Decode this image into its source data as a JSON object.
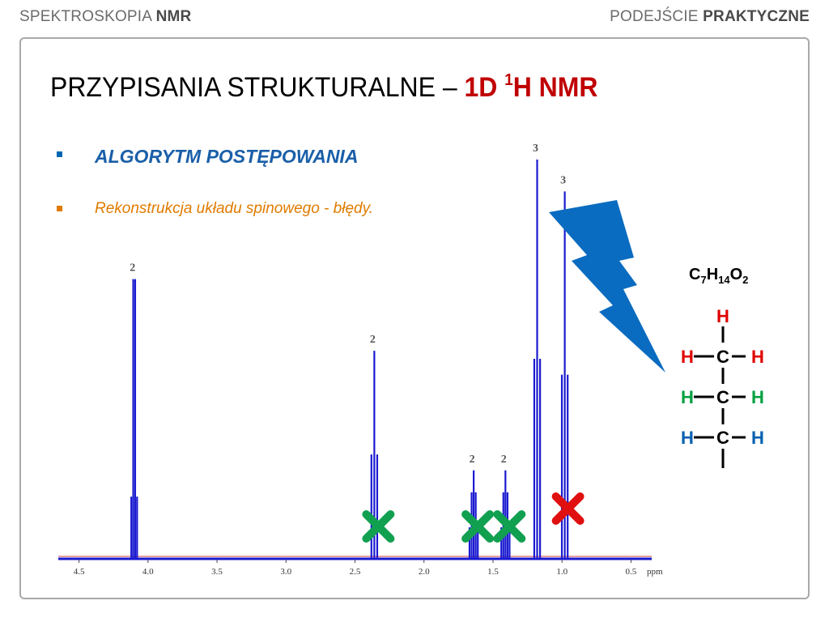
{
  "header": {
    "left_regular": "SPEKTROSKOPIA ",
    "left_bold": "NMR",
    "right_regular": "PODEJŚCIE ",
    "right_bold": "PRAKTYCZNE"
  },
  "title": {
    "prefix": "PRZYPISANIA STRUKTURALNE – ",
    "highlight_a": "1D ",
    "sup": "1",
    "highlight_b": "H NMR"
  },
  "bullets": [
    {
      "text": "ALGORYTM POSTĘPOWANIA",
      "color": "#1a5fa8"
    },
    {
      "text": "Rekonstrukcja układu spinowego - błędy.",
      "color": "#e07b00"
    }
  ],
  "formula": {
    "c": "C",
    "c_n": "7",
    "h": "H",
    "h_n": "14",
    "o": "O",
    "o_n": "2"
  },
  "structure": {
    "carbon": "C",
    "hydrogen": "H",
    "colors": {
      "top": "#e00000",
      "middle": "#00a040",
      "bottom": "#0060b0"
    }
  },
  "colors": {
    "spectrum": "#1a1ad0",
    "baseline_red": "#d04040",
    "bolt": "#0a6cc0",
    "cross_green": "#10a050",
    "cross_red": "#e01010"
  },
  "chart_data": {
    "type": "line",
    "xlabel": "ppm",
    "xlim": [
      4.65,
      0.35
    ],
    "xticks": [
      "4.5",
      "4.0",
      "3.5",
      "3.0",
      "2.5",
      "2.0",
      "1.5",
      "1.0",
      "0.5"
    ],
    "peaks": [
      {
        "ppm": 4.1,
        "height": 0.7,
        "integral": "2",
        "multiplet": "q",
        "mark": "none"
      },
      {
        "ppm": 2.36,
        "height": 0.52,
        "integral": "2",
        "multiplet": "t",
        "mark": "green"
      },
      {
        "ppm": 1.64,
        "height": 0.22,
        "integral": "2",
        "multiplet": "m",
        "mark": "green"
      },
      {
        "ppm": 1.41,
        "height": 0.22,
        "integral": "2",
        "multiplet": "m",
        "mark": "green"
      },
      {
        "ppm": 1.18,
        "height": 1.0,
        "integral": "3",
        "multiplet": "t",
        "mark": "none"
      },
      {
        "ppm": 0.98,
        "height": 0.92,
        "integral": "3",
        "multiplet": "t",
        "mark": "red"
      }
    ]
  }
}
